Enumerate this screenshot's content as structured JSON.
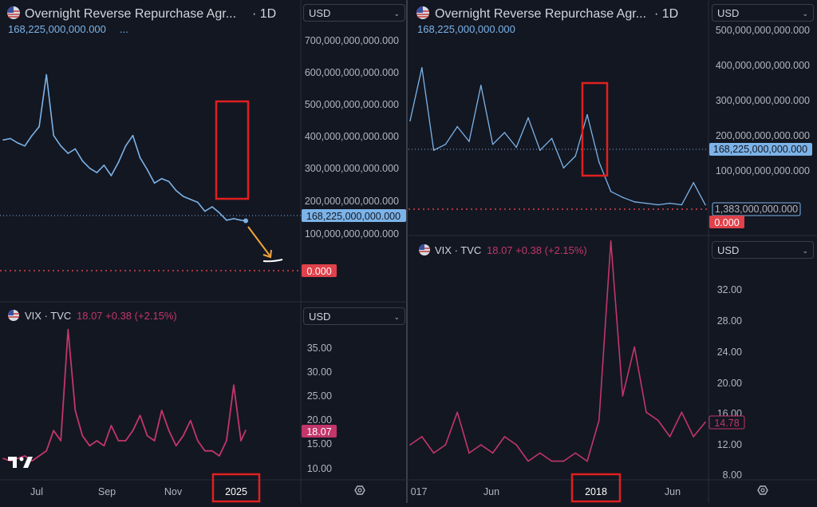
{
  "colors": {
    "background": "#131722",
    "rrp_line": "#7cb3e8",
    "vix_line": "#c2366a",
    "zero_line": "#e0414a",
    "highlight_box": "#e0201e",
    "arrow": "#f0a43a"
  },
  "left": {
    "title": "Overnight Reverse Repurchase Agr...",
    "interval": "· 1D",
    "value": "168,225,000,000.000",
    "value_suffix": "...",
    "currency": "USD",
    "y_ticks": [
      "700,000,000,000.000",
      "600,000,000,000.000",
      "500,000,000,000.000",
      "400,000,000,000.000",
      "300,000,000,000.000",
      "200,000,000,000.000",
      "100,000,000,000.000"
    ],
    "last_label": "168,225,000,000.000",
    "zero_label": "0.000",
    "vix_title": "VIX · TVC",
    "vix_value": "18.07 +0.38 (+2.15%)",
    "vix_currency": "USD",
    "vix_ticks": [
      "35.00",
      "30.00",
      "25.00",
      "20.00",
      "15.00",
      "10.00"
    ],
    "vix_last": "18.07",
    "x_ticks": [
      "Jul",
      "Sep",
      "Nov",
      "2025"
    ],
    "logo": "TV"
  },
  "right": {
    "title": "Overnight Reverse Repurchase Agr...",
    "interval": "· 1D",
    "value": "168,225,000,000.000",
    "currency": "USD",
    "y_ticks": [
      "500,000,000,000.000",
      "400,000,000,000.000",
      "300,000,000,000.000",
      "200,000,000,000.000",
      "100,000,000,000.000"
    ],
    "last_label": "168,225,000,000.000",
    "secondary_label": "1,383,000,000.000",
    "zero_label": "0.000",
    "vix_title": "VIX · TVC",
    "vix_value": "18.07 +0.38 (+2.15%)",
    "vix_currency": "USD",
    "vix_ticks": [
      "32.00",
      "28.00",
      "24.00",
      "20.00",
      "16.00",
      "12.00",
      "8.00"
    ],
    "vix_last": "14.78",
    "x_ticks": [
      "017",
      "Jun",
      "2018",
      "Jun"
    ]
  },
  "chart_data": [
    {
      "type": "line",
      "title": "Overnight Reverse Repurchase Agreements (RRP) · 1D — left",
      "series": [
        {
          "name": "Overnight Reverse Repurchase Agr...",
          "x": [
            0,
            3,
            6,
            9,
            12,
            15,
            18,
            21,
            24,
            27,
            30,
            33,
            36,
            39,
            42,
            45,
            48,
            51,
            54,
            57,
            60,
            63,
            66,
            69,
            72,
            75,
            78,
            81,
            84,
            87,
            90,
            93,
            96,
            99,
            101
          ],
          "values": [
            440,
            445,
            430,
            420,
            455,
            485,
            660,
            455,
            420,
            395,
            410,
            370,
            345,
            330,
            355,
            320,
            365,
            420,
            455,
            380,
            340,
            295,
            310,
            300,
            270,
            250,
            240,
            230,
            200,
            215,
            195,
            170,
            175,
            170,
            168
          ]
        }
      ],
      "ylim": [
        0,
        750
      ],
      "x_ticks": [
        "Jul",
        "Sep",
        "Nov",
        "2025"
      ]
    },
    {
      "type": "line",
      "title": "VIX · TVC — left",
      "series": [
        {
          "name": "VIX · TVC",
          "x": [
            0,
            3,
            6,
            9,
            12,
            15,
            18,
            21,
            24,
            27,
            30,
            33,
            36,
            39,
            42,
            45,
            48,
            51,
            54,
            57,
            60,
            63,
            66,
            69,
            72,
            75,
            78,
            81,
            84,
            87,
            90,
            93,
            96,
            99,
            101
          ],
          "values": [
            12.5,
            12,
            12.5,
            13,
            12,
            13,
            14,
            18,
            16,
            38,
            22,
            17,
            15,
            16,
            15,
            19,
            16,
            16,
            18,
            21,
            17,
            16,
            22,
            18,
            15,
            17,
            20,
            16,
            14,
            14,
            13,
            16,
            27,
            16,
            18.07
          ]
        }
      ],
      "ylim": [
        10,
        40
      ],
      "x_ticks": [
        "Jul",
        "Sep",
        "Nov",
        "2025"
      ]
    },
    {
      "type": "line",
      "title": "Overnight Reverse Repurchase Agreements (RRP) · 1D — right",
      "series": [
        {
          "name": "Overnight Reverse Repurchase Agr...",
          "x": [
            0,
            4,
            8,
            12,
            16,
            20,
            24,
            28,
            32,
            36,
            40,
            44,
            48,
            52,
            56,
            60,
            64,
            68,
            72,
            76,
            80,
            84,
            88,
            92,
            96,
            100
          ],
          "values": [
            300,
            480,
            200,
            220,
            280,
            230,
            420,
            220,
            260,
            210,
            310,
            200,
            240,
            140,
            180,
            320,
            160,
            60,
            40,
            25,
            20,
            15,
            20,
            15,
            90,
            15
          ]
        }
      ],
      "ylim": [
        0,
        520
      ],
      "x_ticks": [
        "017",
        "Jun",
        "2018",
        "Jun"
      ]
    },
    {
      "type": "line",
      "title": "VIX · TVC — right",
      "series": [
        {
          "name": "VIX · TVC",
          "x": [
            0,
            4,
            8,
            12,
            16,
            20,
            24,
            28,
            32,
            36,
            40,
            44,
            48,
            52,
            56,
            60,
            64,
            68,
            72,
            76,
            80,
            84,
            88,
            92,
            96,
            100
          ],
          "values": [
            12,
            13,
            11,
            12,
            16,
            11,
            12,
            11,
            13,
            12,
            10,
            11,
            10,
            10,
            11,
            10,
            15,
            37,
            18,
            24,
            16,
            15,
            13,
            16,
            13,
            14.78
          ]
        }
      ],
      "ylim": [
        8,
        36
      ],
      "x_ticks": [
        "017",
        "Jun",
        "2018",
        "Jun"
      ]
    }
  ]
}
